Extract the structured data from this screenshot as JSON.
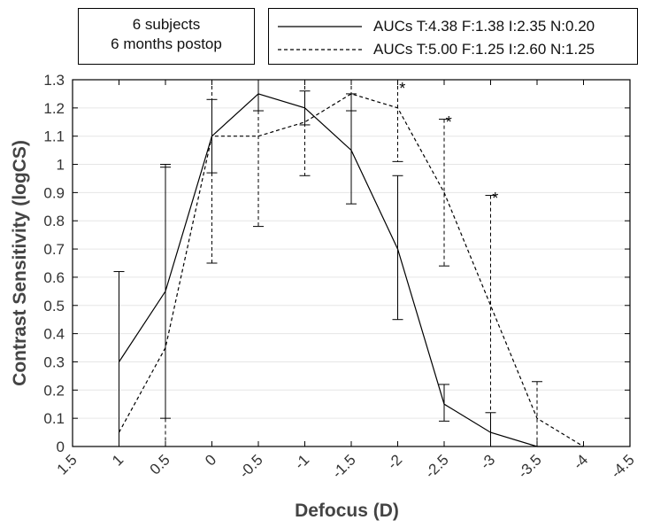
{
  "info_box": {
    "line1": "6 subjects",
    "line2": "6 months postop"
  },
  "chart_data": {
    "type": "line",
    "xlabel": "Defocus (D)",
    "ylabel": "Contrast Sensitivity (logCS)",
    "xlim": [
      1.5,
      -4.5
    ],
    "ylim": [
      0,
      1.3
    ],
    "x_ticks": [
      1.5,
      1,
      0.5,
      0,
      -0.5,
      -1,
      -1.5,
      -2,
      -2.5,
      -3,
      -3.5,
      -4,
      -4.5
    ],
    "x_tick_labels": [
      "1.5",
      "1",
      "0.5",
      "0",
      "-0.5",
      "-1",
      "-1.5",
      "-2",
      "-2.5",
      "-3",
      "-3.5",
      "-4",
      "-4.5"
    ],
    "y_ticks": [
      0,
      0.1,
      0.2,
      0.3,
      0.4,
      0.5,
      0.6,
      0.7,
      0.8,
      0.9,
      1,
      1.1,
      1.2,
      1.3
    ],
    "y_tick_labels": [
      "0",
      "0.1",
      "0.2",
      "0.3",
      "0.4",
      "0.5",
      "0.6",
      "0.7",
      "0.8",
      "0.9",
      "1",
      "1.1",
      "1.2",
      "1.3"
    ],
    "grid": true,
    "line_color": "#000000",
    "grid_color": "#e6e6e6",
    "series": [
      {
        "name": "AUCs T:4.38 F:1.38 I:2.35 N:0.20",
        "style": "solid",
        "x": [
          1,
          0.5,
          0,
          -0.5,
          -1,
          -1.5,
          -2,
          -2.5,
          -3,
          -3.5,
          -4
        ],
        "y": [
          0.3,
          0.55,
          1.1,
          1.25,
          1.2,
          1.05,
          0.7,
          0.15,
          0.05,
          0.0,
          0.0
        ],
        "err_upper": [
          0.62,
          0.99,
          1.23,
          1.3,
          1.26,
          1.25,
          0.96,
          0.22,
          0.12,
          null,
          null
        ],
        "err_lower": [
          0.0,
          0.1,
          0.97,
          1.19,
          1.14,
          0.86,
          0.45,
          0.09,
          0.0,
          null,
          null
        ]
      },
      {
        "name": "AUCs T:5.00 F:1.25 I:2.60 N:1.25",
        "style": "dashed",
        "x": [
          1,
          0.5,
          0,
          -0.5,
          -1,
          -1.5,
          -2,
          -2.5,
          -3,
          -3.5,
          -4
        ],
        "y": [
          0.05,
          0.35,
          1.1,
          1.1,
          1.15,
          1.25,
          1.2,
          0.9,
          0.5,
          0.1,
          0.0
        ],
        "err_upper": [
          null,
          1.0,
          1.3,
          1.3,
          1.3,
          1.3,
          1.3,
          1.16,
          0.89,
          0.23,
          null
        ],
        "err_lower": [
          null,
          0.0,
          0.65,
          0.78,
          0.96,
          1.19,
          1.01,
          0.64,
          0.0,
          0.0,
          null
        ]
      }
    ],
    "annotations": [
      {
        "text": "*",
        "x": -2.05,
        "y": 1.3
      },
      {
        "text": "*",
        "x": -2.55,
        "y": 1.18
      },
      {
        "text": "*",
        "x": -3.05,
        "y": 0.91
      }
    ]
  }
}
